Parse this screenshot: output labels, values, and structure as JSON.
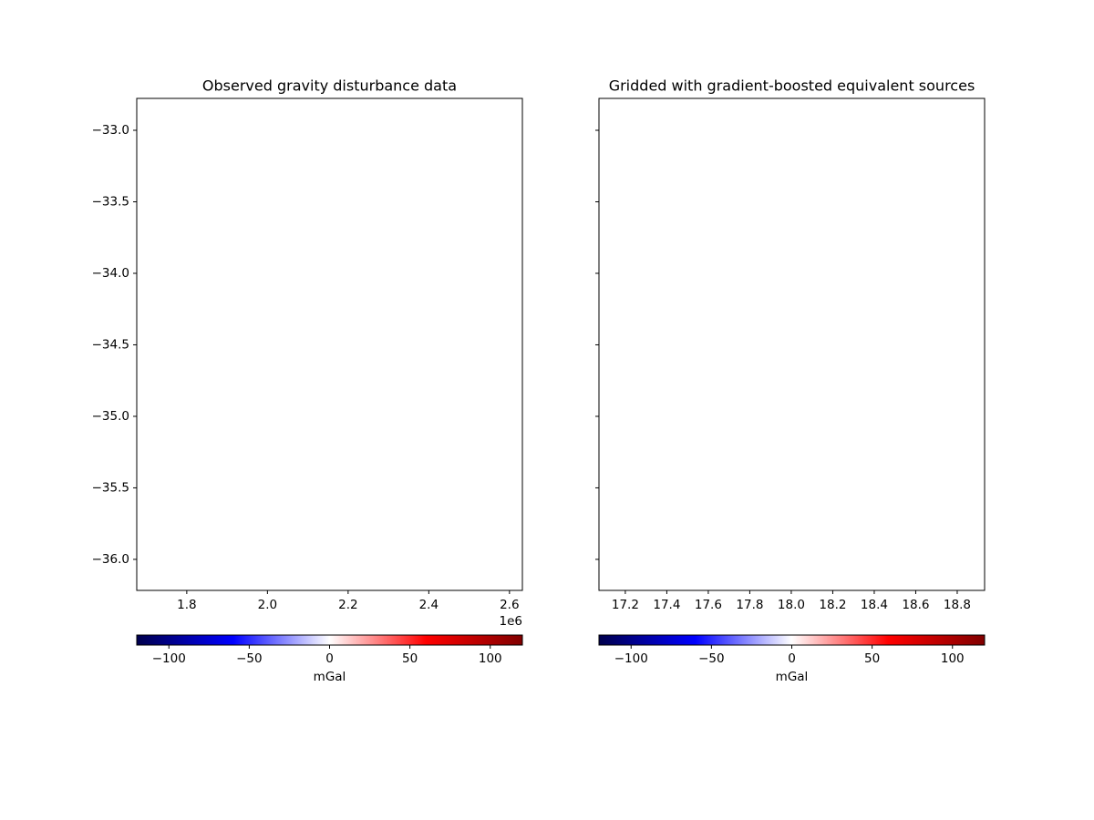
{
  "chart_data": [
    {
      "type": "map",
      "title": "Observed gravity disturbance data",
      "xlim": [
        1.676,
        2.632
      ],
      "xticks": [
        1.8,
        {
          "value": 2,
          "label": "2.0"
        },
        2.2,
        2.4,
        2.6
      ],
      "x_offset_label": "1e6",
      "ylim": [
        -36.217,
        -32.777
      ],
      "yticks": [
        {
          "value": -33,
          "label": "−33.0"
        },
        {
          "value": -33.5,
          "label": "−33.5"
        },
        {
          "value": -34,
          "label": "−34.0"
        },
        {
          "value": -34.5,
          "label": "−34.5"
        },
        {
          "value": -35,
          "label": "−35.0"
        },
        {
          "value": -35.5,
          "label": "−35.5"
        },
        {
          "value": -36,
          "label": "−36.0"
        }
      ],
      "ytick_labels": true,
      "colorbar": {
        "label": "mGal",
        "lim": [
          -120,
          120
        ],
        "ticks": [
          {
            "value": -100,
            "label": "−100"
          },
          {
            "value": -50,
            "label": "−50"
          },
          0,
          50,
          100
        ],
        "colors": [
          "#00004d",
          "#0000ff",
          "#ffffff",
          "#ff0000",
          "#800000"
        ]
      }
    },
    {
      "type": "map",
      "title": "Gridded with gradient-boosted equivalent sources",
      "xlim": [
        17.073,
        18.932
      ],
      "xticks": [
        17.2,
        17.4,
        17.6,
        17.8,
        {
          "value": 18,
          "label": "18.0"
        },
        18.2,
        18.4,
        18.6,
        18.8
      ],
      "ylim": [
        -36.217,
        -32.777
      ],
      "yticks": [
        -33,
        -33.5,
        -34,
        -34.5,
        -35,
        -35.5,
        -36
      ],
      "ytick_labels": false,
      "colorbar": {
        "label": "mGal",
        "lim": [
          -120,
          120
        ],
        "ticks": [
          {
            "value": -100,
            "label": "−100"
          },
          {
            "value": -50,
            "label": "−50"
          },
          0,
          50,
          100
        ],
        "colors": [
          "#00004d",
          "#0000ff",
          "#ffffff",
          "#ff0000",
          "#800000"
        ]
      }
    }
  ]
}
